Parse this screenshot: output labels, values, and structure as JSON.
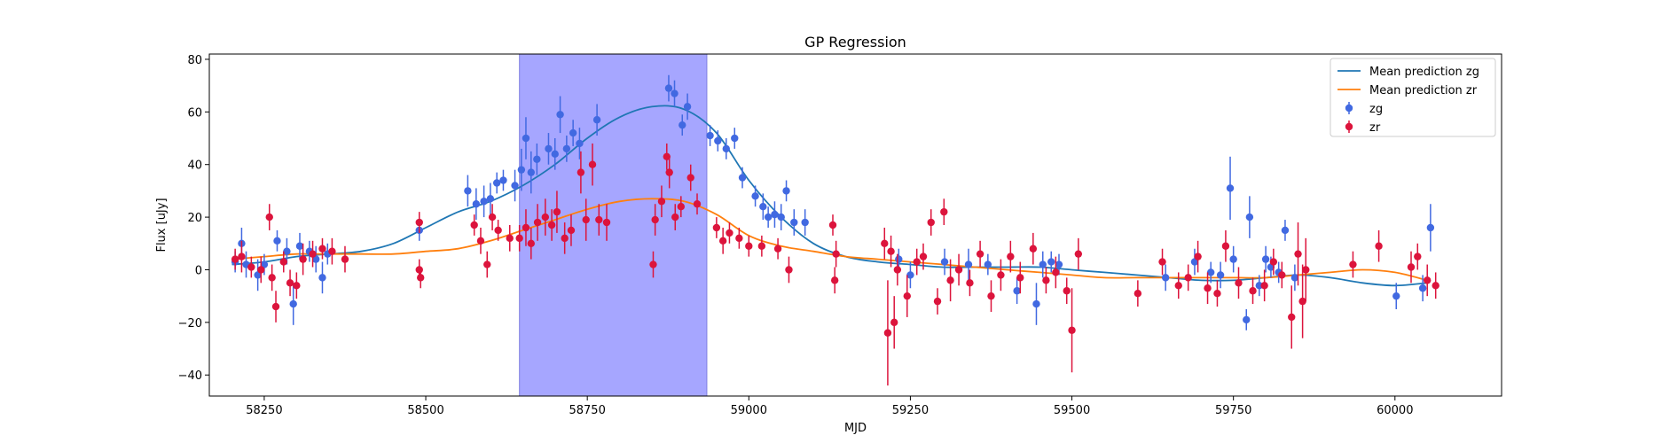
{
  "chart_data": {
    "type": "scatter",
    "title": "GP Regression",
    "xlabel": "MJD",
    "ylabel": "Flux [uJy]",
    "xlim": [
      58165,
      60165
    ],
    "ylim": [
      -48,
      82
    ],
    "xticks": [
      58250,
      58500,
      58750,
      59000,
      59250,
      59500,
      59750,
      60000
    ],
    "yticks": [
      -40,
      -20,
      0,
      20,
      40,
      60,
      80
    ],
    "grid": false,
    "legend_position": "top-right",
    "shaded_region": {
      "x_start": 58645,
      "x_end": 58935,
      "color": "#a6a6ff"
    },
    "colors": {
      "zg_line": "#1f77b4",
      "zr_line": "#ff7f0e",
      "zg_points": "#4169e1",
      "zr_points": "#dc143c"
    },
    "legend": [
      {
        "key": "zg_line",
        "label": "Mean prediction zg",
        "kind": "line"
      },
      {
        "key": "zr_line",
        "label": "Mean prediction zr",
        "kind": "line"
      },
      {
        "key": "zg_points",
        "label": "zg",
        "kind": "errorbar"
      },
      {
        "key": "zr_points",
        "label": "zr",
        "kind": "errorbar"
      }
    ],
    "series": [
      {
        "name": "Mean prediction zg",
        "kind": "line",
        "x": [
          58200,
          58250,
          58300,
          58350,
          58400,
          58450,
          58500,
          58550,
          58600,
          58650,
          58700,
          58750,
          58800,
          58850,
          58900,
          58950,
          59000,
          59050,
          59100,
          59150,
          59200,
          59250,
          59300,
          59350,
          59400,
          59450,
          59500,
          59550,
          59600,
          59650,
          59700,
          59750,
          59800,
          59850,
          59900,
          59950,
          60000,
          60050
        ],
        "y": [
          2,
          3,
          5,
          6,
          7,
          10,
          16,
          22,
          26,
          32,
          40,
          50,
          58,
          62,
          61,
          52,
          34,
          20,
          10,
          5,
          3,
          2,
          1,
          1,
          1,
          1,
          0,
          -1,
          -2,
          -3,
          -4,
          -4,
          -3,
          -2,
          -3,
          -5,
          -6,
          -5
        ]
      },
      {
        "name": "Mean prediction zr",
        "kind": "line",
        "x": [
          58200,
          58250,
          58300,
          58350,
          58400,
          58450,
          58500,
          58550,
          58600,
          58650,
          58700,
          58750,
          58800,
          58850,
          58900,
          58950,
          59000,
          59050,
          59100,
          59150,
          59200,
          59250,
          59300,
          59350,
          59400,
          59450,
          59500,
          59550,
          59600,
          59650,
          59700,
          59750,
          59800,
          59850,
          59900,
          59950,
          60000,
          60050
        ],
        "y": [
          4,
          5,
          6,
          6,
          6,
          6,
          7,
          8,
          11,
          15,
          19,
          23,
          26,
          27,
          26,
          21,
          13,
          9,
          7,
          5,
          4,
          3,
          2,
          1,
          0,
          -1,
          -2,
          -3,
          -3,
          -3,
          -3,
          -3,
          -3,
          -2,
          -1,
          0,
          -1,
          -4
        ]
      },
      {
        "name": "zg",
        "kind": "errorbar",
        "points": [
          [
            58205,
            3,
            4
          ],
          [
            58215,
            10,
            6
          ],
          [
            58222,
            2,
            5
          ],
          [
            58240,
            -2,
            6
          ],
          [
            58250,
            2,
            4
          ],
          [
            58270,
            11,
            4
          ],
          [
            58285,
            7,
            5
          ],
          [
            58295,
            -13,
            8
          ],
          [
            58305,
            9,
            5
          ],
          [
            58320,
            7,
            4
          ],
          [
            58330,
            4,
            5
          ],
          [
            58340,
            -3,
            6
          ],
          [
            58348,
            6,
            4
          ],
          [
            58490,
            15,
            4
          ],
          [
            58565,
            30,
            6
          ],
          [
            58578,
            25,
            6
          ],
          [
            58590,
            26,
            6
          ],
          [
            58600,
            27,
            6
          ],
          [
            58610,
            33,
            4
          ],
          [
            58620,
            34,
            4
          ],
          [
            58638,
            32,
            6
          ],
          [
            58648,
            38,
            8
          ],
          [
            58655,
            50,
            8
          ],
          [
            58663,
            37,
            8
          ],
          [
            58672,
            42,
            6
          ],
          [
            58690,
            46,
            6
          ],
          [
            58700,
            44,
            6
          ],
          [
            58708,
            59,
            7
          ],
          [
            58718,
            46,
            5
          ],
          [
            58728,
            52,
            5
          ],
          [
            58738,
            48,
            6
          ],
          [
            58765,
            57,
            6
          ],
          [
            58876,
            69,
            5
          ],
          [
            58885,
            67,
            5
          ],
          [
            58897,
            55,
            4
          ],
          [
            58905,
            62,
            5
          ],
          [
            58940,
            51,
            4
          ],
          [
            58952,
            49,
            4
          ],
          [
            58965,
            46,
            4
          ],
          [
            58978,
            50,
            4
          ],
          [
            58990,
            35,
            4
          ],
          [
            59010,
            28,
            4
          ],
          [
            59022,
            24,
            5
          ],
          [
            59030,
            20,
            4
          ],
          [
            59040,
            21,
            5
          ],
          [
            59050,
            20,
            5
          ],
          [
            59058,
            30,
            4
          ],
          [
            59070,
            18,
            5
          ],
          [
            59087,
            18,
            5
          ],
          [
            59232,
            4,
            4
          ],
          [
            59250,
            -2,
            5
          ],
          [
            59303,
            3,
            5
          ],
          [
            59340,
            2,
            6
          ],
          [
            59370,
            2,
            4
          ],
          [
            59415,
            -8,
            5
          ],
          [
            59445,
            -13,
            8
          ],
          [
            59455,
            2,
            5
          ],
          [
            59468,
            3,
            4
          ],
          [
            59480,
            2,
            4
          ],
          [
            59645,
            -3,
            5
          ],
          [
            59690,
            3,
            5
          ],
          [
            59715,
            -1,
            4
          ],
          [
            59730,
            -2,
            5
          ],
          [
            59745,
            31,
            12
          ],
          [
            59750,
            4,
            5
          ],
          [
            59770,
            -19,
            4
          ],
          [
            59775,
            20,
            8
          ],
          [
            59790,
            -6,
            4
          ],
          [
            59800,
            4,
            5
          ],
          [
            59808,
            1,
            4
          ],
          [
            59820,
            -1,
            4
          ],
          [
            59830,
            15,
            4
          ],
          [
            59845,
            -3,
            5
          ],
          [
            60002,
            -10,
            5
          ],
          [
            60043,
            -7,
            5
          ],
          [
            60055,
            16,
            9
          ]
        ]
      },
      {
        "name": "zr",
        "kind": "errorbar",
        "points": [
          [
            58205,
            4,
            4
          ],
          [
            58215,
            5,
            6
          ],
          [
            58230,
            1,
            4
          ],
          [
            58245,
            0,
            5
          ],
          [
            58258,
            20,
            5
          ],
          [
            58262,
            -3,
            5
          ],
          [
            58268,
            -14,
            6
          ],
          [
            58280,
            3,
            4
          ],
          [
            58290,
            -5,
            5
          ],
          [
            58300,
            -6,
            5
          ],
          [
            58310,
            4,
            6
          ],
          [
            58325,
            6,
            5
          ],
          [
            58340,
            8,
            4
          ],
          [
            58355,
            7,
            5
          ],
          [
            58375,
            4,
            5
          ],
          [
            58490,
            18,
            4
          ],
          [
            58490,
            0,
            4
          ],
          [
            58492,
            -3,
            4
          ],
          [
            58575,
            17,
            4
          ],
          [
            58585,
            11,
            5
          ],
          [
            58595,
            2,
            5
          ],
          [
            58603,
            20,
            5
          ],
          [
            58612,
            15,
            4
          ],
          [
            58630,
            12,
            5
          ],
          [
            58645,
            12,
            5
          ],
          [
            58655,
            16,
            7
          ],
          [
            58663,
            10,
            6
          ],
          [
            58673,
            18,
            7
          ],
          [
            58685,
            20,
            7
          ],
          [
            58695,
            17,
            6
          ],
          [
            58703,
            22,
            8
          ],
          [
            58715,
            12,
            6
          ],
          [
            58725,
            15,
            6
          ],
          [
            58740,
            37,
            8
          ],
          [
            58748,
            19,
            8
          ],
          [
            58758,
            40,
            8
          ],
          [
            58768,
            19,
            6
          ],
          [
            58780,
            18,
            7
          ],
          [
            58852,
            2,
            5
          ],
          [
            58855,
            19,
            6
          ],
          [
            58865,
            26,
            6
          ],
          [
            58873,
            43,
            5
          ],
          [
            58877,
            37,
            6
          ],
          [
            58886,
            20,
            5
          ],
          [
            58895,
            24,
            4
          ],
          [
            58910,
            35,
            5
          ],
          [
            58920,
            25,
            4
          ],
          [
            58950,
            16,
            4
          ],
          [
            58960,
            11,
            5
          ],
          [
            58970,
            14,
            4
          ],
          [
            58985,
            12,
            4
          ],
          [
            59000,
            9,
            4
          ],
          [
            59020,
            9,
            4
          ],
          [
            59045,
            8,
            4
          ],
          [
            59062,
            0,
            5
          ],
          [
            59130,
            17,
            4
          ],
          [
            59133,
            -4,
            5
          ],
          [
            59135,
            6,
            5
          ],
          [
            59210,
            10,
            6
          ],
          [
            59215,
            -24,
            20
          ],
          [
            59220,
            7,
            6
          ],
          [
            59225,
            -20,
            10
          ],
          [
            59230,
            0,
            6
          ],
          [
            59245,
            -10,
            8
          ],
          [
            59260,
            3,
            5
          ],
          [
            59270,
            5,
            5
          ],
          [
            59282,
            18,
            5
          ],
          [
            59292,
            -12,
            5
          ],
          [
            59302,
            22,
            5
          ],
          [
            59312,
            -4,
            8
          ],
          [
            59325,
            0,
            6
          ],
          [
            59342,
            -5,
            5
          ],
          [
            59358,
            6,
            5
          ],
          [
            59375,
            -10,
            6
          ],
          [
            59390,
            -2,
            6
          ],
          [
            59405,
            5,
            6
          ],
          [
            59420,
            -3,
            6
          ],
          [
            59440,
            8,
            6
          ],
          [
            59460,
            -4,
            5
          ],
          [
            59475,
            -1,
            6
          ],
          [
            59492,
            -8,
            5
          ],
          [
            59500,
            -23,
            16
          ],
          [
            59510,
            6,
            6
          ],
          [
            59602,
            -9,
            5
          ],
          [
            59640,
            3,
            5
          ],
          [
            59665,
            -6,
            5
          ],
          [
            59680,
            -3,
            5
          ],
          [
            59695,
            5,
            6
          ],
          [
            59710,
            -7,
            6
          ],
          [
            59725,
            -9,
            5
          ],
          [
            59738,
            9,
            6
          ],
          [
            59758,
            -5,
            6
          ],
          [
            59780,
            -8,
            5
          ],
          [
            59798,
            -6,
            6
          ],
          [
            59812,
            3,
            5
          ],
          [
            59825,
            -2,
            5
          ],
          [
            59840,
            -18,
            12
          ],
          [
            59850,
            6,
            12
          ],
          [
            59857,
            -12,
            14
          ],
          [
            59862,
            0,
            12
          ],
          [
            59935,
            2,
            5
          ],
          [
            59975,
            9,
            6
          ],
          [
            60025,
            1,
            6
          ],
          [
            60035,
            5,
            5
          ],
          [
            60050,
            -4,
            6
          ],
          [
            60063,
            -6,
            5
          ]
        ]
      }
    ]
  }
}
